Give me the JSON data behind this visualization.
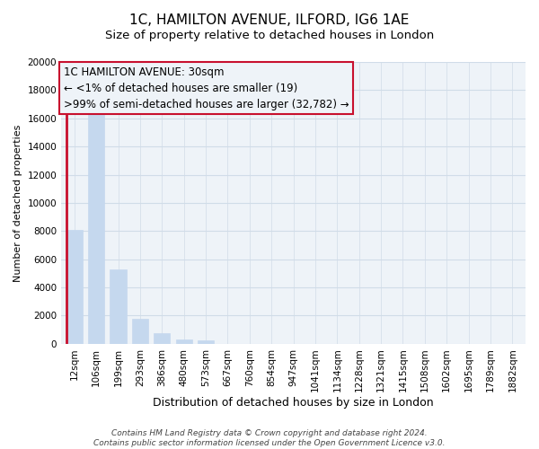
{
  "title": "1C, HAMILTON AVENUE, ILFORD, IG6 1AE",
  "subtitle": "Size of property relative to detached houses in London",
  "xlabel": "Distribution of detached houses by size in London",
  "ylabel": "Number of detached properties",
  "bar_labels": [
    "12sqm",
    "106sqm",
    "199sqm",
    "293sqm",
    "386sqm",
    "480sqm",
    "573sqm",
    "667sqm",
    "760sqm",
    "854sqm",
    "947sqm",
    "1041sqm",
    "1134sqm",
    "1228sqm",
    "1321sqm",
    "1415sqm",
    "1508sqm",
    "1602sqm",
    "1695sqm",
    "1789sqm",
    "1882sqm"
  ],
  "bar_values": [
    8100,
    16500,
    5300,
    1750,
    750,
    300,
    230,
    0,
    0,
    0,
    0,
    0,
    0,
    0,
    0,
    0,
    0,
    0,
    0,
    0,
    0
  ],
  "bar_color": "#c5d8ee",
  "highlight_bar_edge_color": "#c8102e",
  "ylim": [
    0,
    20000
  ],
  "yticks": [
    0,
    2000,
    4000,
    6000,
    8000,
    10000,
    12000,
    14000,
    16000,
    18000,
    20000
  ],
  "annotation_line1": "1C HAMILTON AVENUE: 30sqm",
  "annotation_line2": "← <1% of detached houses are smaller (19)",
  "annotation_line3": ">99% of semi-detached houses are larger (32,782) →",
  "annotation_box_edge_color": "#c8102e",
  "bg_color": "#ffffff",
  "plot_bg_color": "#eef3f8",
  "grid_color": "#d0dce8",
  "footer_line1": "Contains HM Land Registry data © Crown copyright and database right 2024.",
  "footer_line2": "Contains public sector information licensed under the Open Government Licence v3.0.",
  "title_fontsize": 11,
  "subtitle_fontsize": 9.5,
  "xlabel_fontsize": 9,
  "ylabel_fontsize": 8,
  "tick_fontsize": 7.5,
  "annotation_fontsize": 8.5,
  "footer_fontsize": 6.5
}
